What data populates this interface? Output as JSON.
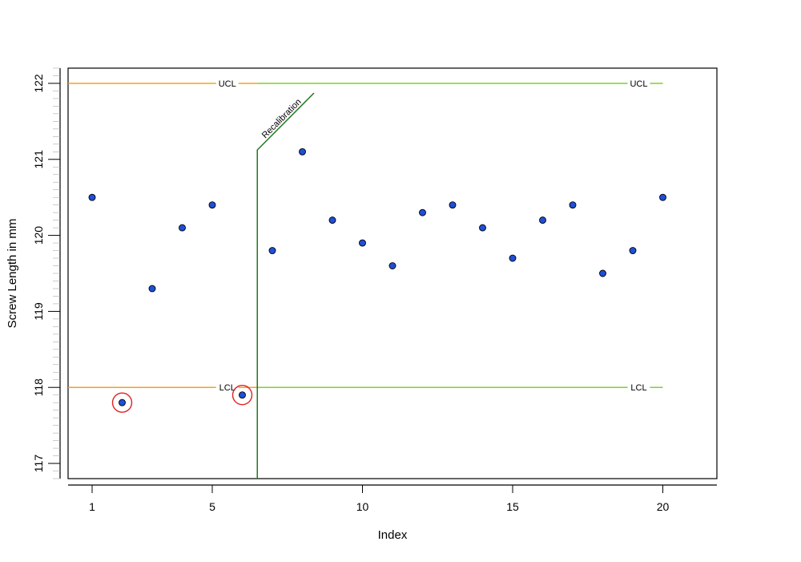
{
  "chart_data": {
    "type": "scatter",
    "title": "",
    "xlabel": "Index",
    "ylabel": "Screw Length in mm",
    "xlim": [
      0.2,
      21.8
    ],
    "ylim": [
      116.8,
      122.2
    ],
    "x_ticks": [
      "1",
      "5",
      "10",
      "15",
      "20"
    ],
    "y_ticks": [
      "117",
      "118",
      "119",
      "120",
      "121",
      "122"
    ],
    "x": [
      1,
      2,
      3,
      4,
      5,
      6,
      7,
      8,
      9,
      10,
      11,
      12,
      13,
      14,
      15,
      16,
      17,
      18,
      19,
      20
    ],
    "y": [
      120.5,
      117.8,
      119.3,
      120.1,
      120.4,
      117.9,
      119.8,
      121.1,
      120.2,
      119.9,
      119.6,
      120.3,
      120.4,
      120.1,
      119.7,
      120.2,
      120.4,
      119.5,
      119.8,
      120.5
    ],
    "point_color": "#1f4fd6",
    "highlighted_x": [
      2,
      6
    ],
    "highlight_color": "#e0221f",
    "limit_lines": [
      {
        "label": "UCL",
        "value": 122,
        "x_start": 0.2,
        "x_end": 6.5,
        "color": "#f5a21a",
        "label_at": 5.5
      },
      {
        "label": "UCL",
        "value": 122,
        "x_start": 6.5,
        "x_end": 20,
        "color": "#7ed321",
        "label_at": 19.2
      },
      {
        "label": "LCL",
        "value": 118,
        "x_start": 0.2,
        "x_end": 6.5,
        "color": "#f5a21a",
        "label_at": 5.5
      },
      {
        "label": "LCL",
        "value": 118,
        "x_start": 6.5,
        "x_end": 20,
        "color": "#7ed321",
        "label_at": 19.2
      }
    ],
    "annotation": {
      "text": "Recalibration",
      "x": 6.5,
      "color": "#1e7a1e"
    }
  }
}
